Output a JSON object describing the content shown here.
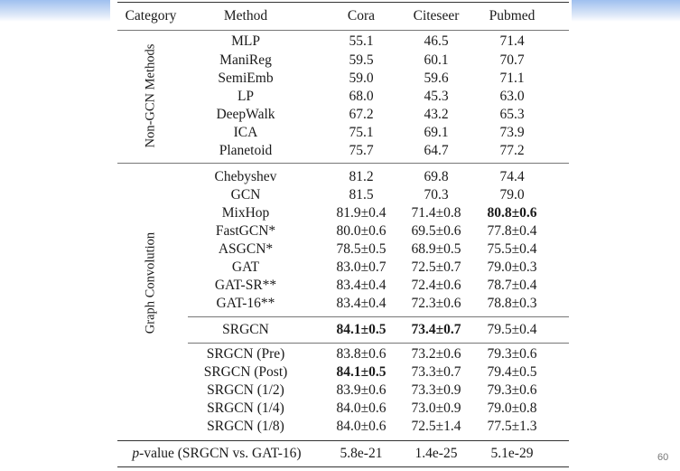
{
  "header": {
    "category": "Category",
    "method": "Method",
    "cols": [
      "Cora",
      "Citeseer",
      "Pubmed"
    ]
  },
  "groups": [
    {
      "label": "Non-GCN Methods",
      "rows": [
        {
          "method": "MLP",
          "values": [
            "55.1",
            "46.5",
            "71.4"
          ]
        },
        {
          "method": "ManiReg",
          "values": [
            "59.5",
            "60.1",
            "70.7"
          ]
        },
        {
          "method": "SemiEmb",
          "values": [
            "59.0",
            "59.6",
            "71.1"
          ]
        },
        {
          "method": "LP",
          "values": [
            "68.0",
            "45.3",
            "63.0"
          ]
        },
        {
          "method": "DeepWalk",
          "values": [
            "67.2",
            "43.2",
            "65.3"
          ]
        },
        {
          "method": "ICA",
          "values": [
            "75.1",
            "69.1",
            "73.9"
          ]
        },
        {
          "method": "Planetoid",
          "values": [
            "75.7",
            "64.7",
            "77.2"
          ]
        }
      ]
    },
    {
      "label": "Graph Convolution",
      "rows": [
        {
          "method": "Chebyshev",
          "values": [
            "81.2",
            "69.8",
            "74.4"
          ]
        },
        {
          "method": "GCN",
          "values": [
            "81.5",
            "70.3",
            "79.0"
          ]
        },
        {
          "method": "MixHop",
          "values": [
            "81.9±0.4",
            "71.4±0.8",
            "80.8±0.6"
          ],
          "bold": [
            false,
            false,
            true
          ]
        },
        {
          "method": "FastGCN*",
          "values": [
            "80.0±0.6",
            "69.5±0.6",
            "77.8±0.4"
          ]
        },
        {
          "method": "ASGCN*",
          "values": [
            "78.5±0.5",
            "68.9±0.5",
            "75.5±0.4"
          ]
        },
        {
          "method": "GAT",
          "values": [
            "83.0±0.7",
            "72.5±0.7",
            "79.0±0.3"
          ]
        },
        {
          "method": "GAT-SR**",
          "values": [
            "83.4±0.4",
            "72.4±0.6",
            "78.7±0.4"
          ]
        },
        {
          "method": "GAT-16**",
          "values": [
            "83.4±0.4",
            "72.3±0.6",
            "78.8±0.3"
          ]
        },
        {
          "method": "SRGCN",
          "values": [
            "84.1±0.5",
            "73.4±0.7",
            "79.5±0.4"
          ],
          "bold": [
            true,
            true,
            false
          ]
        },
        {
          "method": "SRGCN (Pre)",
          "values": [
            "83.8±0.6",
            "73.2±0.6",
            "79.3±0.6"
          ]
        },
        {
          "method": "SRGCN (Post)",
          "values": [
            "84.1±0.5",
            "73.3±0.7",
            "79.4±0.5"
          ],
          "bold": [
            true,
            false,
            false
          ]
        },
        {
          "method": "SRGCN (1/2)",
          "values": [
            "83.9±0.6",
            "73.3±0.9",
            "79.3±0.6"
          ]
        },
        {
          "method": "SRGCN (1/4)",
          "values": [
            "84.0±0.6",
            "73.0±0.9",
            "79.0±0.8"
          ]
        },
        {
          "method": "SRGCN (1/8)",
          "values": [
            "84.0±0.6",
            "72.5±1.4",
            "77.5±1.3"
          ]
        }
      ]
    }
  ],
  "pvalue": {
    "label": "p-value (SRGCN vs. GAT-16)",
    "values": [
      "5.8e-21",
      "1.4e-25",
      "5.1e-29"
    ]
  },
  "page_number": "60"
}
